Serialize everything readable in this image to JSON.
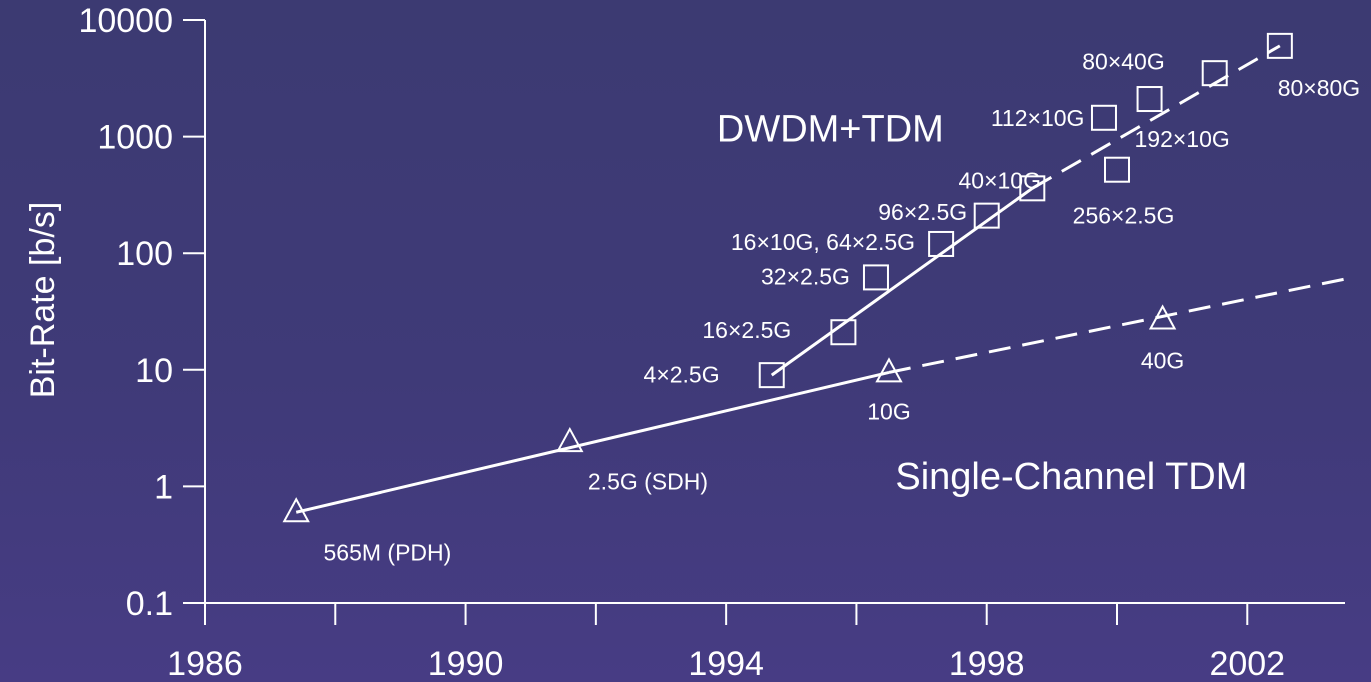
{
  "chart_data": {
    "type": "scatter",
    "title": "",
    "xlabel": "",
    "ylabel": "Bit-Rate [b/s]",
    "xlim": [
      1986,
      2003.5
    ],
    "ylim": [
      0.1,
      10000
    ],
    "yscale": "log",
    "grid": false,
    "x_ticks": [
      1986,
      1990,
      1994,
      1998,
      2002
    ],
    "x_minor_ticks": [
      1988,
      1992,
      1996,
      2000
    ],
    "y_ticks": [
      {
        "value": 0.1,
        "label": "0.1"
      },
      {
        "value": 1,
        "label": "1"
      },
      {
        "value": 10,
        "label": "10"
      },
      {
        "value": 100,
        "label": "100"
      },
      {
        "value": 1000,
        "label": "1000"
      },
      {
        "value": 10000,
        "label": "10000"
      }
    ],
    "region_labels": [
      {
        "text": "DWDM+TDM",
        "x": 1995.6,
        "y": 1200
      },
      {
        "text": "Single-Channel TDM",
        "x": 1999.3,
        "y": 1.25
      }
    ],
    "series": [
      {
        "name": "Single-Channel TDM",
        "marker": "triangle",
        "points": [
          {
            "x": 1987.4,
            "y": 0.6,
            "label": "565M (PDH)",
            "lx": 1988.8,
            "ly": 0.27
          },
          {
            "x": 1991.6,
            "y": 2.4,
            "label": "2.5G (SDH)",
            "lx": 1992.8,
            "ly": 1.1
          },
          {
            "x": 1996.5,
            "y": 9.5,
            "label": "10G",
            "lx": 1996.5,
            "ly": 4.4
          },
          {
            "x": 2000.7,
            "y": 27,
            "label": "40G",
            "lx": 2000.7,
            "ly": 12
          }
        ],
        "trend_solid": [
          [
            1987.4,
            0.6
          ],
          [
            1996.5,
            9.5
          ]
        ],
        "trend_dashed": [
          [
            1996.5,
            9.5
          ],
          [
            2003.5,
            60
          ]
        ]
      },
      {
        "name": "DWDM+TDM",
        "marker": "square",
        "points": [
          {
            "x": 1994.7,
            "y": 9,
            "label": "4×2.5G",
            "lx": 1993.9,
            "ly": 9.1,
            "anchor": "end"
          },
          {
            "x": 1995.8,
            "y": 21,
            "label": "16×2.5G",
            "lx": 1995.0,
            "ly": 22,
            "anchor": "end"
          },
          {
            "x": 1996.3,
            "y": 62,
            "label": "32×2.5G",
            "lx": 1995.9,
            "ly": 63,
            "anchor": "end"
          },
          {
            "x": 1997.3,
            "y": 120,
            "label": "16×10G, 64×2.5G",
            "lx": 1996.9,
            "ly": 125,
            "anchor": "end"
          },
          {
            "x": 1998.0,
            "y": 210,
            "label": "96×2.5G",
            "lx": 1997.7,
            "ly": 225,
            "anchor": "end"
          },
          {
            "x": 1998.7,
            "y": 360,
            "label": "40×10G",
            "lx": 1998.2,
            "ly": 420,
            "anchor": "middle"
          },
          {
            "x": 1999.8,
            "y": 1450,
            "label": "112×10G",
            "lx": 1999.5,
            "ly": 1450,
            "anchor": "end"
          },
          {
            "x": 2000.0,
            "y": 520,
            "label": "256×2.5G",
            "lx": 2000.1,
            "ly": 210,
            "anchor": "middle"
          },
          {
            "x": 2000.5,
            "y": 2100,
            "label": "192×10G",
            "lx": 2001.0,
            "ly": 950,
            "anchor": "middle"
          },
          {
            "x": 2001.5,
            "y": 3500,
            "label": "80×40G",
            "lx": 2000.1,
            "ly": 4400,
            "anchor": "middle"
          },
          {
            "x": 2002.5,
            "y": 6000,
            "label": "80×80G",
            "lx": 2003.1,
            "ly": 2600,
            "anchor": "middle"
          }
        ],
        "trend_solid": [
          [
            1994.7,
            9
          ],
          [
            1998.7,
            360
          ]
        ],
        "trend_dashed": [
          [
            1998.7,
            360
          ],
          [
            2002.5,
            6000
          ]
        ]
      }
    ]
  }
}
